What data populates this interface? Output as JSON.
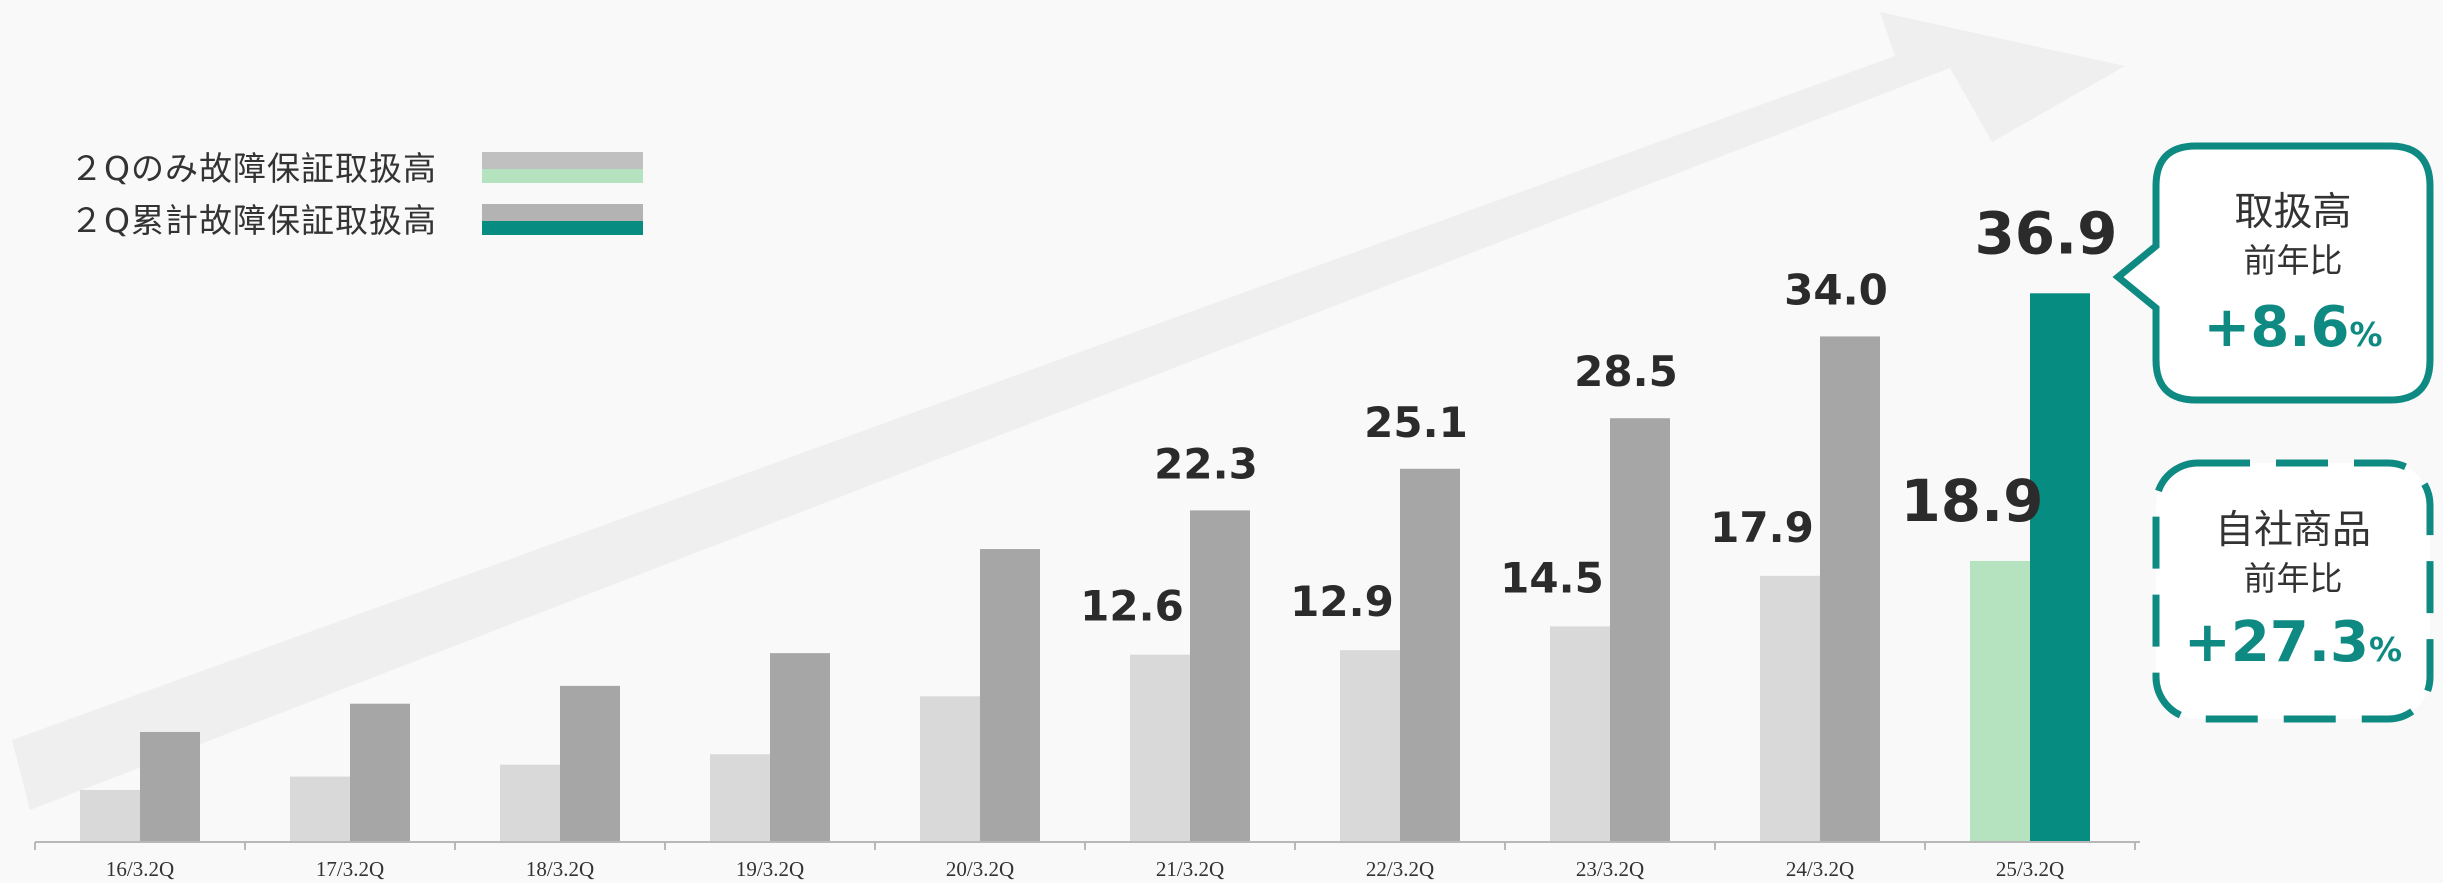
{
  "chart_data": {
    "type": "bar",
    "categories": [
      "16/3.2Q",
      "17/3.2Q",
      "18/3.2Q",
      "19/3.2Q",
      "20/3.2Q",
      "21/3.2Q",
      "22/3.2Q",
      "23/3.2Q",
      "24/3.2Q",
      "25/3.2Q"
    ],
    "series": [
      {
        "name": "２Qのみ故障保証取扱高",
        "values": [
          3.5,
          4.4,
          5.2,
          5.9,
          9.8,
          12.6,
          12.9,
          14.5,
          17.9,
          18.9
        ],
        "labels": [
          "",
          "",
          "",
          "",
          "",
          "12.6",
          "12.9",
          "14.5",
          "17.9",
          "18.9"
        ]
      },
      {
        "name": "２Q累計故障保証取扱高",
        "values": [
          7.4,
          9.3,
          10.5,
          12.7,
          19.7,
          22.3,
          25.1,
          28.5,
          34.0,
          36.9
        ],
        "labels": [
          "",
          "",
          "",
          "",
          "",
          "22.3",
          "25.1",
          "28.5",
          "34.0",
          "36.9"
        ]
      }
    ],
    "ylim": [
      0,
      40
    ],
    "grid": false,
    "legend_position": "top-left",
    "colors": {
      "series1": "#d9d9d9",
      "series2": "#a6a6a6",
      "series1_highlight": "#b5e3bf",
      "series2_highlight": "#068c81",
      "accent": "#0e8a82",
      "arrow": "#efefef"
    }
  },
  "callouts": [
    {
      "title": "取扱高",
      "subtitle": "前年比",
      "value": "+8.6",
      "unit": "%"
    },
    {
      "title": "自社商品",
      "subtitle": "前年比",
      "value": "+27.3",
      "unit": "%"
    }
  ]
}
